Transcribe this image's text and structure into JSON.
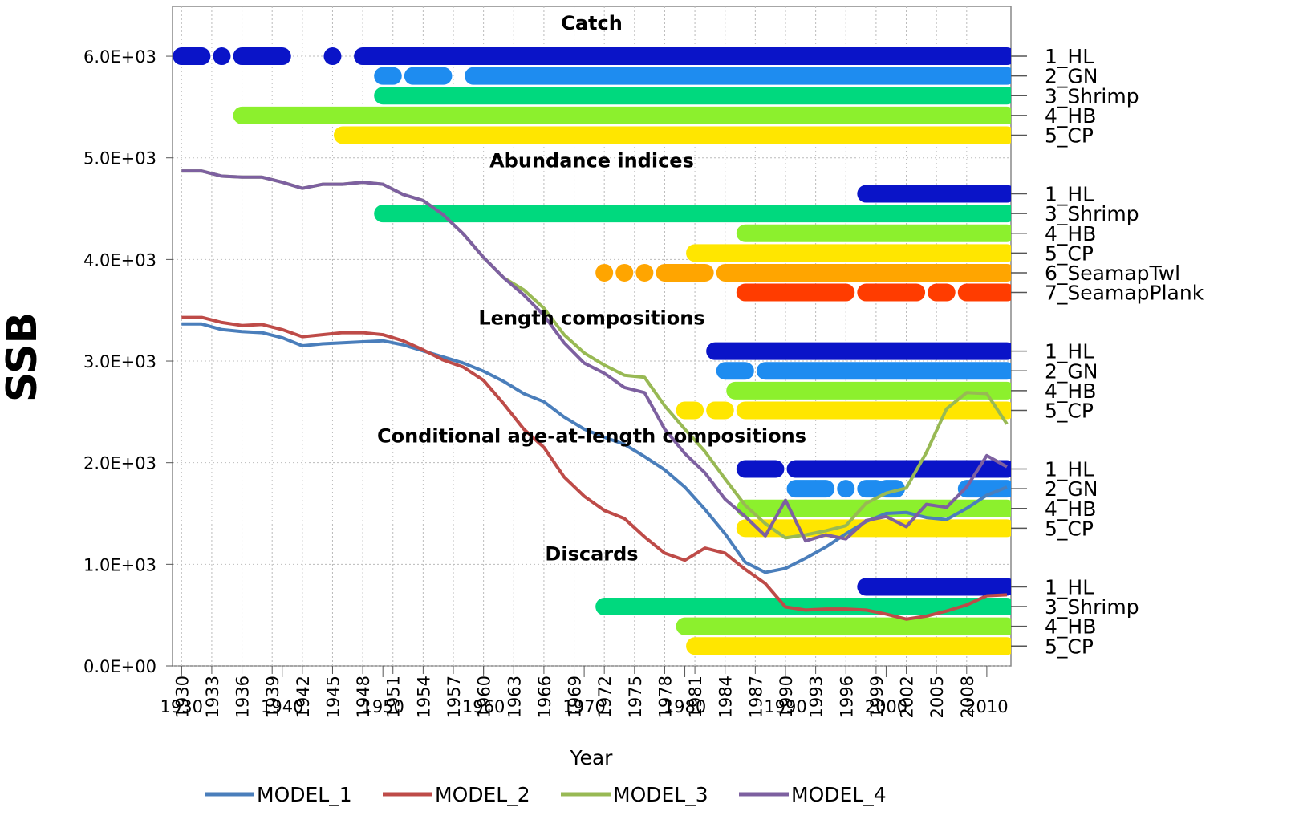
{
  "chart_data": {
    "type": "line",
    "ylabel": "SSB",
    "xlabel": "Year",
    "xlim": [
      1929.1,
      2012.4
    ],
    "ylim": [
      0,
      6490
    ],
    "grid": true,
    "yticks": [
      {
        "value": 0,
        "label": "0.0E+00"
      },
      {
        "value": 1000,
        "label": "1.0E+03"
      },
      {
        "value": 2000,
        "label": "2.0E+03"
      },
      {
        "value": 3000,
        "label": "3.0E+03"
      },
      {
        "value": 4000,
        "label": "4.0E+03"
      },
      {
        "value": 5000,
        "label": "5.0E+03"
      },
      {
        "value": 6000,
        "label": "6.0E+03"
      }
    ],
    "xticks": [
      1930,
      1940,
      1950,
      1960,
      1970,
      1980,
      1990,
      2000,
      2010
    ],
    "xticks_rotated": [
      1930,
      1933,
      1936,
      1939,
      1942,
      1945,
      1948,
      1951,
      1954,
      1957,
      1960,
      1963,
      1966,
      1969,
      1972,
      1975,
      1978,
      1981,
      1984,
      1987,
      1990,
      1993,
      1996,
      1999,
      2002,
      2005,
      2008
    ],
    "x": [
      1930,
      1932,
      1934,
      1936,
      1938,
      1940,
      1942,
      1944,
      1946,
      1948,
      1950,
      1952,
      1954,
      1956,
      1958,
      1960,
      1962,
      1964,
      1966,
      1968,
      1970,
      1972,
      1974,
      1976,
      1978,
      1980,
      1982,
      1984,
      1986,
      1988,
      1990,
      1992,
      1994,
      1996,
      1998,
      2000,
      2002,
      2004,
      2006,
      2008,
      2010,
      2012
    ],
    "series": [
      {
        "name": "MODEL_1",
        "color": "#4a7ebb",
        "values": [
          3365,
          3365,
          3310,
          3290,
          3280,
          3230,
          3150,
          3170,
          3180,
          3190,
          3200,
          3160,
          3100,
          3040,
          2980,
          2900,
          2800,
          2680,
          2600,
          2450,
          2330,
          2250,
          2180,
          2060,
          1930,
          1760,
          1540,
          1300,
          1020,
          920,
          960,
          1060,
          1170,
          1300,
          1420,
          1500,
          1510,
          1460,
          1440,
          1550,
          1680,
          1760
        ]
      },
      {
        "name": "MODEL_2",
        "color": "#be4b48",
        "values": [
          3430,
          3430,
          3380,
          3350,
          3360,
          3310,
          3240,
          3260,
          3280,
          3280,
          3260,
          3200,
          3110,
          3010,
          2940,
          2810,
          2580,
          2330,
          2150,
          1860,
          1670,
          1530,
          1450,
          1270,
          1110,
          1040,
          1160,
          1110,
          950,
          810,
          580,
          550,
          560,
          560,
          550,
          510,
          460,
          490,
          540,
          600,
          690,
          700
        ]
      },
      {
        "name": "MODEL_3",
        "color": "#98b954",
        "values": [
          4870,
          4870,
          4820,
          4810,
          4810,
          4760,
          4700,
          4740,
          4740,
          4760,
          4740,
          4640,
          4580,
          4440,
          4250,
          4020,
          3820,
          3700,
          3520,
          3260,
          3080,
          2960,
          2860,
          2840,
          2560,
          2330,
          2110,
          1840,
          1580,
          1400,
          1260,
          1290,
          1330,
          1380,
          1600,
          1700,
          1750,
          2100,
          2530,
          2690,
          2680,
          2380
        ]
      },
      {
        "name": "MODEL_4",
        "color": "#7d60a0",
        "values": [
          4870,
          4870,
          4820,
          4810,
          4810,
          4760,
          4700,
          4740,
          4740,
          4760,
          4740,
          4640,
          4580,
          4440,
          4250,
          4020,
          3820,
          3650,
          3450,
          3180,
          2980,
          2880,
          2740,
          2690,
          2330,
          2090,
          1900,
          1640,
          1470,
          1280,
          1630,
          1230,
          1290,
          1250,
          1430,
          1470,
          1370,
          1590,
          1560,
          1760,
          2070,
          1960
        ]
      }
    ],
    "data_sections": [
      {
        "title": "Catch",
        "rows": [
          {
            "name": "1_HL",
            "color": "#0a14c8",
            "segments": [
              [
                1930,
                1932
              ],
              [
                1934,
                1934
              ],
              [
                1936,
                1940
              ],
              [
                1945,
                1945
              ],
              [
                1948,
                2012
              ]
            ]
          },
          {
            "name": "2_GN",
            "color": "#1e8cf0",
            "segments": [
              [
                1950,
                1951
              ],
              [
                1953,
                1956
              ],
              [
                1959,
                2012
              ]
            ]
          },
          {
            "name": "3_Shrimp",
            "color": "#00d97e",
            "segments": [
              [
                1950,
                2012
              ]
            ]
          },
          {
            "name": "4_HB",
            "color": "#8cf02d",
            "segments": [
              [
                1936,
                2012
              ]
            ]
          },
          {
            "name": "5_CP",
            "color": "#ffe600",
            "segments": [
              [
                1946,
                2012
              ]
            ]
          }
        ]
      },
      {
        "title": "Abundance indices",
        "rows": [
          {
            "name": "1_HL",
            "color": "#0a14c8",
            "segments": [
              [
                1998,
                2012
              ]
            ]
          },
          {
            "name": "3_Shrimp",
            "color": "#00d97e",
            "segments": [
              [
                1950,
                2012
              ]
            ]
          },
          {
            "name": "4_HB",
            "color": "#8cf02d",
            "segments": [
              [
                1986,
                2012
              ]
            ]
          },
          {
            "name": "5_CP",
            "color": "#ffe600",
            "segments": [
              [
                1981,
                2012
              ]
            ]
          },
          {
            "name": "6_SeamapTwl",
            "color": "#ffa500",
            "segments": [
              [
                1972,
                1972
              ],
              [
                1974,
                1974
              ],
              [
                1976,
                1976
              ],
              [
                1978,
                1982
              ],
              [
                1984,
                2012
              ]
            ]
          },
          {
            "name": "7_SeamapPlank",
            "color": "#ff3c00",
            "segments": [
              [
                1986,
                1996
              ],
              [
                1998,
                2003
              ],
              [
                2005,
                2006
              ],
              [
                2008,
                2012
              ]
            ]
          }
        ]
      },
      {
        "title": "Length compositions",
        "rows": [
          {
            "name": "1_HL",
            "color": "#0a14c8",
            "segments": [
              [
                1983,
                2012
              ]
            ]
          },
          {
            "name": "2_GN",
            "color": "#1e8cf0",
            "segments": [
              [
                1984,
                1986
              ],
              [
                1988,
                2012
              ]
            ]
          },
          {
            "name": "4_HB",
            "color": "#8cf02d",
            "segments": [
              [
                1985,
                2012
              ]
            ]
          },
          {
            "name": "5_CP",
            "color": "#ffe600",
            "segments": [
              [
                1980,
                1981
              ],
              [
                1983,
                1984
              ],
              [
                1986,
                2012
              ]
            ]
          }
        ]
      },
      {
        "title": "Conditional age-at-length compositions",
        "rows": [
          {
            "name": "1_HL",
            "color": "#0a14c8",
            "segments": [
              [
                1986,
                1989
              ],
              [
                1991,
                2012
              ]
            ]
          },
          {
            "name": "2_GN",
            "color": "#1e8cf0",
            "segments": [
              [
                1991,
                1994
              ],
              [
                1996,
                1996
              ],
              [
                1998,
                1999
              ],
              [
                2000,
                2001
              ],
              [
                2008,
                2012
              ]
            ]
          },
          {
            "name": "4_HB",
            "color": "#8cf02d",
            "segments": [
              [
                1986,
                2012
              ]
            ]
          },
          {
            "name": "5_CP",
            "color": "#ffe600",
            "segments": [
              [
                1986,
                2012
              ]
            ]
          }
        ]
      },
      {
        "title": "Discards",
        "rows": [
          {
            "name": "1_HL",
            "color": "#0a14c8",
            "segments": [
              [
                1998,
                2012
              ]
            ]
          },
          {
            "name": "3_Shrimp",
            "color": "#00d97e",
            "segments": [
              [
                1972,
                2012
              ]
            ]
          },
          {
            "name": "4_HB",
            "color": "#8cf02d",
            "segments": [
              [
                1980,
                2012
              ]
            ]
          },
          {
            "name": "5_CP",
            "color": "#ffe600",
            "segments": [
              [
                1981,
                2012
              ]
            ]
          }
        ]
      }
    ]
  }
}
